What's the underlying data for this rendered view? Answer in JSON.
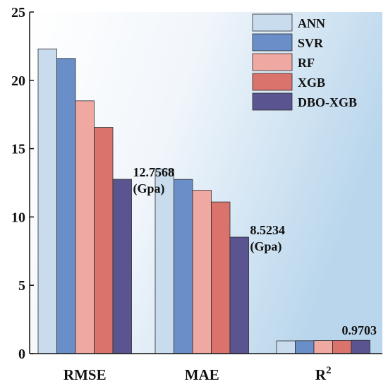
{
  "chart_data": {
    "type": "bar",
    "categories": [
      "RMSE",
      "MAE",
      "R2"
    ],
    "category_display": [
      {
        "base": "RMSE",
        "sup": ""
      },
      {
        "base": "MAE",
        "sup": ""
      },
      {
        "base": "R",
        "sup": "2"
      }
    ],
    "series": [
      {
        "name": "ANN",
        "values": [
          22.3,
          13.5,
          0.93
        ]
      },
      {
        "name": "SVR",
        "values": [
          21.6,
          12.75,
          0.94
        ]
      },
      {
        "name": "RF",
        "values": [
          18.5,
          11.95,
          0.95
        ]
      },
      {
        "name": "XGB",
        "values": [
          16.55,
          11.1,
          0.96
        ]
      },
      {
        "name": "DBO-XGB",
        "values": [
          12.7568,
          8.5234,
          0.9703
        ]
      }
    ],
    "colors": {
      "ANN": "#c9dced",
      "SVR": "#6a8fc8",
      "RF": "#f0a9a2",
      "XGB": "#d9736c",
      "DBO-XGB": "#5a5590"
    },
    "ylim": [
      0,
      25
    ],
    "yticks": [
      0,
      5,
      10,
      15,
      20,
      25
    ],
    "grid": false,
    "legend_position": "top-right",
    "annotations": [
      {
        "category_index": 0,
        "series_index": 4,
        "lines": [
          "12.7568",
          "(Gpa)"
        ]
      },
      {
        "category_index": 1,
        "series_index": 4,
        "lines": [
          "8.5234",
          "(Gpa)"
        ]
      },
      {
        "category_index": 2,
        "series_index": 4,
        "lines": [
          "0.9703"
        ]
      }
    ]
  }
}
